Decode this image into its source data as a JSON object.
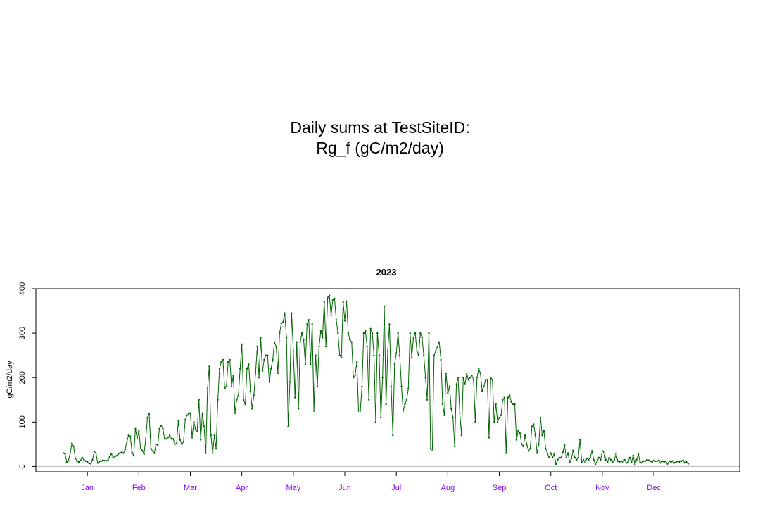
{
  "page": {
    "title_line1": "Daily sums at TestSiteID:",
    "title_line2": "Rg_f (gC/m2/day)"
  },
  "chart_data": {
    "type": "line",
    "title": "2023",
    "ylabel": "gC/m2/day",
    "xlabel": "",
    "xlim": [
      -15,
      395
    ],
    "ylim": [
      -12,
      400
    ],
    "yticks": [
      0,
      100,
      200,
      300,
      400
    ],
    "xticks": [
      {
        "day": 15,
        "label": "Jan"
      },
      {
        "day": 45,
        "label": "Feb"
      },
      {
        "day": 75,
        "label": "Mar"
      },
      {
        "day": 105,
        "label": "Apr"
      },
      {
        "day": 135,
        "label": "May"
      },
      {
        "day": 165,
        "label": "Jun"
      },
      {
        "day": 195,
        "label": "Jul"
      },
      {
        "day": 225,
        "label": "Aug"
      },
      {
        "day": 255,
        "label": "Sep"
      },
      {
        "day": 285,
        "label": "Oct"
      },
      {
        "day": 315,
        "label": "Nov"
      },
      {
        "day": 345,
        "label": "Dec"
      }
    ],
    "reference_line": 0,
    "grid": false,
    "legend": "none",
    "colors": {
      "line": "#006400",
      "tick_labels_x": "#8B00FF",
      "reference": "#BEBEBE"
    },
    "series": [
      {
        "values": [
          30,
          28,
          10,
          14,
          30,
          52,
          45,
          18,
          12,
          10,
          14,
          20,
          15,
          12,
          10,
          7,
          6,
          15,
          34,
          30,
          8,
          11,
          12,
          14,
          13,
          13,
          14,
          22,
          28,
          20,
          22,
          24,
          28,
          30,
          32,
          30,
          38,
          55,
          70,
          68,
          32,
          24,
          85,
          62,
          80,
          42,
          36,
          28,
          62,
          110,
          118,
          40,
          35,
          30,
          50,
          48,
          85,
          92,
          85,
          62,
          62,
          65,
          70,
          62,
          62,
          50,
          52,
          103,
          60,
          50,
          55,
          105,
          115,
          118,
          120,
          65,
          100,
          85,
          80,
          150,
          60,
          120,
          90,
          30,
          175,
          225,
          70,
          30,
          70,
          40,
          150,
          220,
          235,
          240,
          175,
          180,
          235,
          240,
          180,
          205,
          120,
          150,
          160,
          220,
          275,
          150,
          140,
          220,
          230,
          170,
          130,
          160,
          210,
          270,
          200,
          290,
          215,
          240,
          250,
          250,
          190,
          220,
          240,
          280,
          270,
          210,
          300,
          322,
          325,
          345,
          290,
          90,
          190,
          345,
          260,
          155,
          280,
          130,
          280,
          300,
          285,
          230,
          320,
          330,
          230,
          320,
          125,
          250,
          180,
          270,
          305,
          290,
          370,
          270,
          380,
          385,
          340,
          375,
          378,
          330,
          300,
          250,
          245,
          370,
          328,
          372,
          300,
          285,
          280,
          200,
          205,
          235,
          125,
          125,
          180,
          300,
          305,
          270,
          150,
          310,
          300,
          250,
          100,
          300,
          250,
          110,
          200,
          360,
          140,
          260,
          320,
          180,
          70,
          230,
          255,
          300,
          250,
          180,
          125,
          140,
          150,
          175,
          300,
          245,
          290,
          300,
          260,
          250,
          300,
          290,
          250,
          200,
          150,
          300,
          40,
          38,
          250,
          260,
          270,
          280,
          240,
          140,
          115,
          210,
          165,
          180,
          130,
          110,
          45,
          185,
          200,
          120,
          70,
          200,
          185,
          210,
          195,
          200,
          205,
          195,
          100,
          200,
          220,
          210,
          170,
          180,
          195,
          195,
          65,
          200,
          195,
          100,
          140,
          100,
          110,
          115,
          150,
          155,
          30,
          155,
          160,
          145,
          140,
          140,
          60,
          80,
          75,
          50,
          45,
          70,
          50,
          35,
          40,
          90,
          95,
          70,
          30,
          50,
          110,
          70,
          80,
          40,
          30,
          20,
          30,
          20,
          28,
          5,
          15,
          20,
          20,
          32,
          48,
          20,
          30,
          10,
          18,
          36,
          20,
          15,
          20,
          60,
          10,
          15,
          10,
          18,
          15,
          20,
          35,
          15,
          5,
          12,
          20,
          15,
          35,
          32,
          15,
          10,
          20,
          15,
          10,
          15,
          28,
          12,
          10,
          12,
          10,
          15,
          8,
          10,
          20,
          10,
          25,
          5,
          15,
          28,
          10,
          8,
          12,
          12,
          15,
          14,
          12,
          10,
          14,
          12,
          12,
          14,
          8,
          12,
          10,
          12,
          6,
          12,
          10,
          12,
          8,
          10,
          12,
          10,
          12,
          14,
          8,
          10,
          6
        ]
      }
    ]
  }
}
